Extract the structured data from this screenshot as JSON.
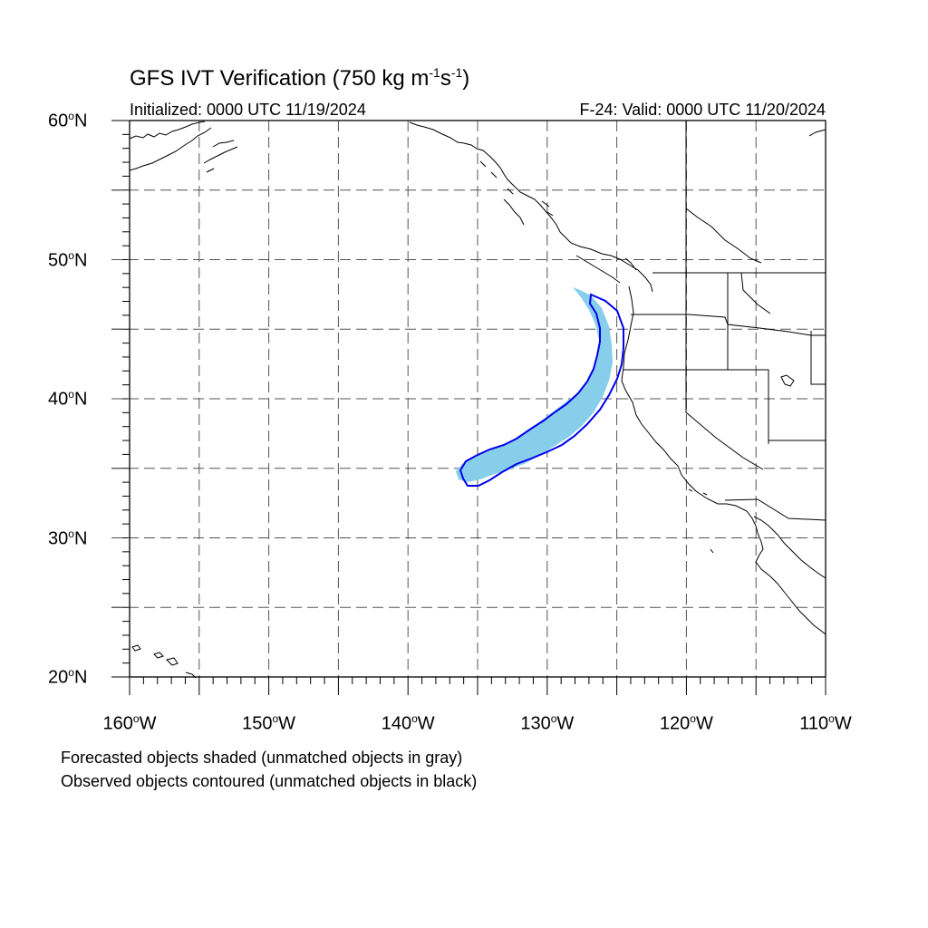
{
  "title": {
    "main": "GFS IVT Verification (750 kg m",
    "exp1": "-1",
    "mid": "s",
    "exp2": "-1",
    "end": ")"
  },
  "initialized": "Initialized: 0000 UTC 11/19/2024",
  "valid": "F-24: Valid: 0000 UTC 11/20/2024",
  "lat_labels": [
    {
      "num": "60",
      "deg": "o",
      "hem": "N"
    },
    {
      "num": "50",
      "deg": "o",
      "hem": "N"
    },
    {
      "num": "40",
      "deg": "o",
      "hem": "N"
    },
    {
      "num": "30",
      "deg": "o",
      "hem": "N"
    },
    {
      "num": "20",
      "deg": "o",
      "hem": "N"
    }
  ],
  "lon_labels": [
    {
      "num": "160",
      "deg": "o",
      "hem": "W"
    },
    {
      "num": "150",
      "deg": "o",
      "hem": "W"
    },
    {
      "num": "140",
      "deg": "o",
      "hem": "W"
    },
    {
      "num": "130",
      "deg": "o",
      "hem": "W"
    },
    {
      "num": "120",
      "deg": "o",
      "hem": "W"
    },
    {
      "num": "110",
      "deg": "o",
      "hem": "W"
    }
  ],
  "notes": [
    "Forecasted objects shaded (unmatched objects in gray)",
    "Observed objects contoured (unmatched objects in black)"
  ],
  "map_data": {
    "lon_range": [
      -160,
      -110
    ],
    "lat_range": [
      20,
      60
    ],
    "grid_interval_deg": 5,
    "forecast_fill_color": "#87ceeb",
    "observed_contour_color": "#0000ee",
    "coast_color": "#000000"
  }
}
